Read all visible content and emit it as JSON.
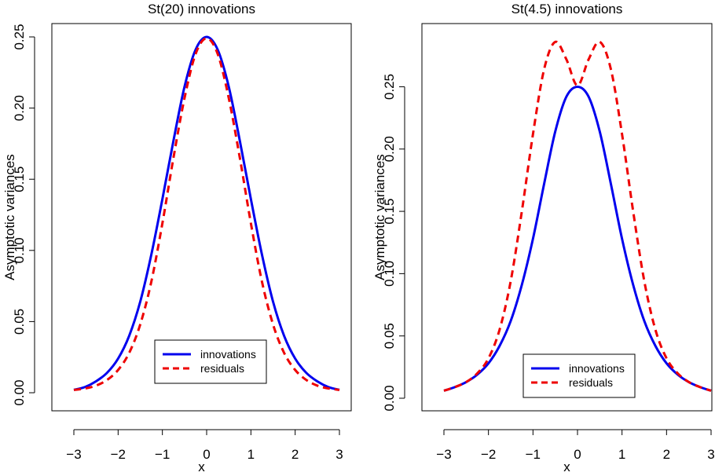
{
  "chart_data": [
    {
      "type": "line",
      "title": "St(20) innovations",
      "xlabel": "x",
      "ylabel": "Asymptotic variances",
      "xlim": [
        -3,
        3
      ],
      "ylim": [
        0,
        0.25
      ],
      "xticks": [
        "−3",
        "−2",
        "−1",
        "0",
        "1",
        "2",
        "3"
      ],
      "yticks": [
        "0.00",
        "0.05",
        "0.10",
        "0.15",
        "0.20",
        "0.25"
      ],
      "x": [
        -3,
        -2.75,
        -2.5,
        -2.25,
        -2,
        -1.75,
        -1.5,
        -1.25,
        -1,
        -0.75,
        -0.5,
        -0.25,
        0,
        0.25,
        0.5,
        0.75,
        1,
        1.25,
        1.5,
        1.75,
        2,
        2.25,
        2.5,
        2.75,
        3
      ],
      "series": [
        {
          "name": "innovations",
          "color": "#0000ee",
          "dash": "solid",
          "values": [
            0.002,
            0.004,
            0.008,
            0.014,
            0.024,
            0.04,
            0.064,
            0.097,
            0.136,
            0.177,
            0.215,
            0.241,
            0.25,
            0.241,
            0.215,
            0.177,
            0.136,
            0.097,
            0.064,
            0.04,
            0.024,
            0.014,
            0.008,
            0.004,
            0.002
          ]
        },
        {
          "name": "residuals",
          "color": "#ee0000",
          "dash": "dashed",
          "values": [
            0.002,
            0.003,
            0.005,
            0.009,
            0.016,
            0.028,
            0.048,
            0.078,
            0.119,
            0.165,
            0.207,
            0.238,
            0.249,
            0.238,
            0.207,
            0.165,
            0.119,
            0.078,
            0.048,
            0.028,
            0.016,
            0.009,
            0.005,
            0.003,
            0.002
          ]
        }
      ],
      "legend": {
        "position": "bottom-right",
        "entries": [
          "innovations",
          "residuals"
        ]
      },
      "grid": false
    },
    {
      "type": "line",
      "title": "St(4.5) innovations",
      "xlabel": "x",
      "ylabel": "Asymptotic variances",
      "xlim": [
        -3,
        3
      ],
      "ylim": [
        0,
        0.29
      ],
      "xticks": [
        "−3",
        "−2",
        "−1",
        "0",
        "1",
        "2",
        "3"
      ],
      "yticks": [
        "0.00",
        "0.05",
        "0.10",
        "0.15",
        "0.20",
        "0.25"
      ],
      "x": [
        -3,
        -2.75,
        -2.5,
        -2.25,
        -2,
        -1.75,
        -1.5,
        -1.25,
        -1,
        -0.75,
        -0.5,
        -0.25,
        0,
        0.25,
        0.5,
        0.75,
        1,
        1.25,
        1.5,
        1.75,
        2,
        2.25,
        2.5,
        2.75,
        3
      ],
      "series": [
        {
          "name": "innovations",
          "color": "#0000ee",
          "dash": "solid",
          "values": [
            0.006,
            0.009,
            0.013,
            0.019,
            0.028,
            0.042,
            0.062,
            0.091,
            0.128,
            0.172,
            0.214,
            0.242,
            0.25,
            0.242,
            0.214,
            0.172,
            0.128,
            0.091,
            0.062,
            0.042,
            0.028,
            0.019,
            0.013,
            0.009,
            0.006
          ]
        },
        {
          "name": "residuals",
          "color": "#ee0000",
          "dash": "dashed",
          "values": [
            0.006,
            0.009,
            0.013,
            0.02,
            0.032,
            0.055,
            0.094,
            0.15,
            0.212,
            0.264,
            0.286,
            0.272,
            0.251,
            0.272,
            0.286,
            0.264,
            0.212,
            0.15,
            0.094,
            0.055,
            0.032,
            0.02,
            0.013,
            0.009,
            0.006
          ]
        }
      ],
      "legend": {
        "position": "bottom-right",
        "entries": [
          "innovations",
          "residuals"
        ]
      },
      "grid": false
    }
  ]
}
